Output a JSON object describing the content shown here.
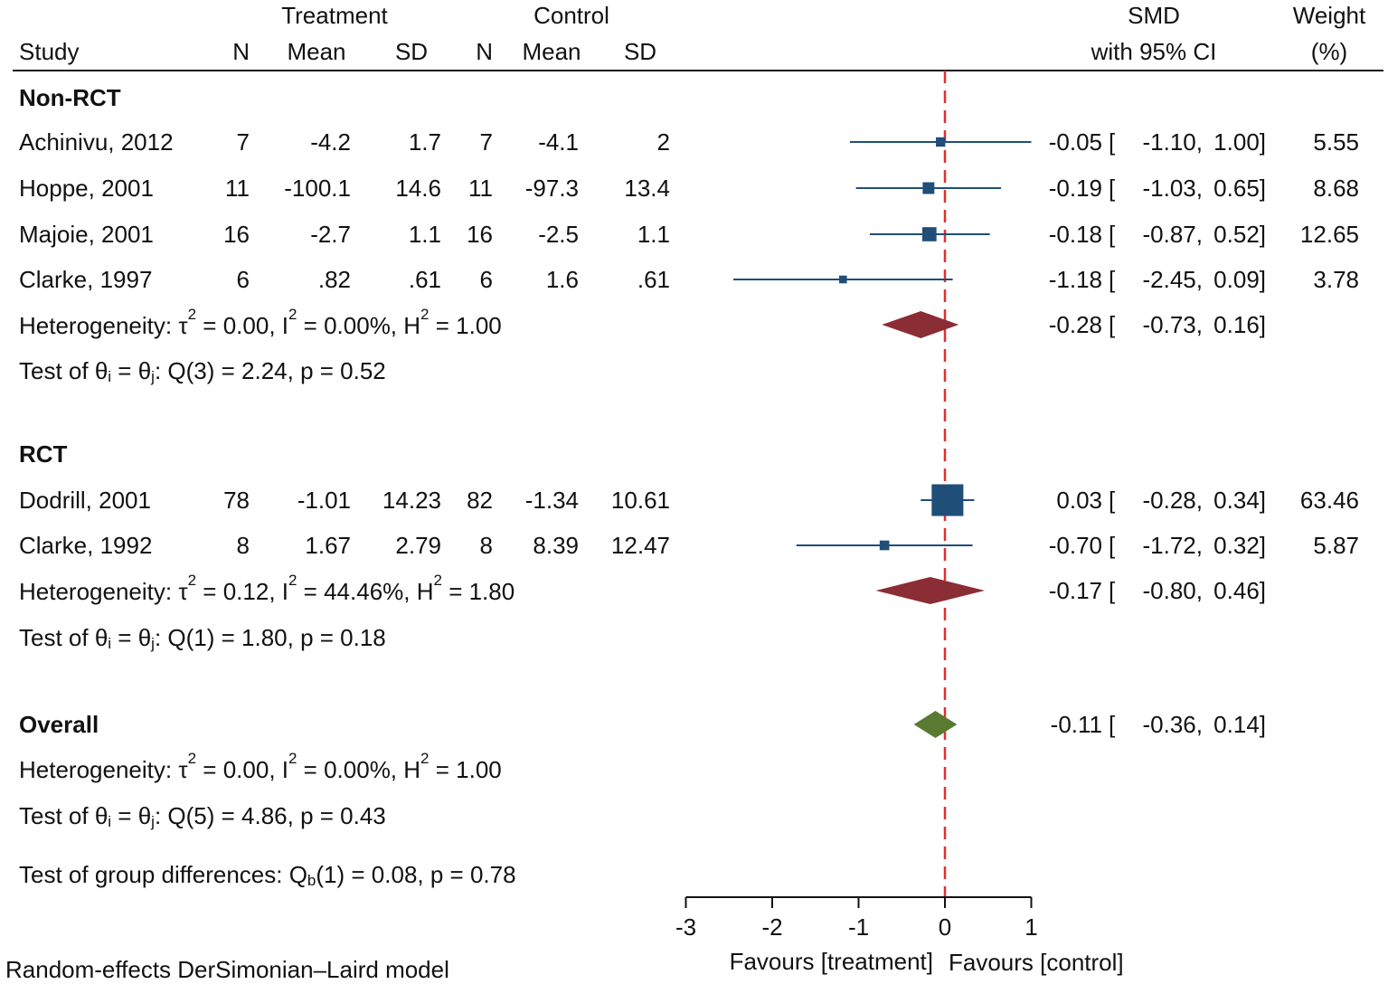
{
  "chart_data": {
    "type": "forest",
    "header": {
      "treatment_label": "Treatment",
      "control_label": "Control",
      "smd_label": "SMD",
      "ci_label": "with 95% CI",
      "weight_label": "Weight",
      "weight_unit": "(%)",
      "study": "Study",
      "n": "N",
      "mean": "Mean",
      "sd": "SD"
    },
    "groups": [
      {
        "name": "Non-RCT",
        "studies": [
          {
            "study": "Achinivu, 2012",
            "t_n": "7",
            "t_mean": "-4.2",
            "t_sd": "1.7",
            "c_n": "7",
            "c_mean": "-4.1",
            "c_sd": "2",
            "smd": -0.05,
            "lo": -1.1,
            "hi": 1.0,
            "smd_text": "-0.05",
            "lo_text": "-1.10,",
            "hi_text": "1.00]",
            "weight": 5.55,
            "weight_text": "5.55"
          },
          {
            "study": "Hoppe, 2001",
            "t_n": "11",
            "t_mean": "-100.1",
            "t_sd": "14.6",
            "c_n": "11",
            "c_mean": "-97.3",
            "c_sd": "13.4",
            "smd": -0.19,
            "lo": -1.03,
            "hi": 0.65,
            "smd_text": "-0.19",
            "lo_text": "-1.03,",
            "hi_text": "0.65]",
            "weight": 8.68,
            "weight_text": "8.68"
          },
          {
            "study": "Majoie, 2001",
            "t_n": "16",
            "t_mean": "-2.7",
            "t_sd": "1.1",
            "c_n": "16",
            "c_mean": "-2.5",
            "c_sd": "1.1",
            "smd": -0.18,
            "lo": -0.87,
            "hi": 0.52,
            "smd_text": "-0.18",
            "lo_text": "-0.87,",
            "hi_text": "0.52]",
            "weight": 12.65,
            "weight_text": "12.65"
          },
          {
            "study": "Clarke, 1997",
            "t_n": "6",
            "t_mean": ".82",
            "t_sd": ".61",
            "c_n": "6",
            "c_mean": "1.6",
            "c_sd": ".61",
            "smd": -1.18,
            "lo": -2.45,
            "hi": 0.09,
            "smd_text": "-1.18",
            "lo_text": "-2.45,",
            "hi_text": "0.09]",
            "weight": 3.78,
            "weight_text": "3.78"
          }
        ],
        "pooled": {
          "smd": -0.28,
          "lo": -0.73,
          "hi": 0.16,
          "smd_text": "-0.28",
          "lo_text": "-0.73,",
          "hi_text": "0.16]"
        },
        "heterogeneity": {
          "prefix": "Heterogeneity: τ",
          "tau": " = 0.00, I",
          "i2": " = 0.00%, H",
          "h2": " = 1.00"
        },
        "test": {
          "prefix": "Test of θ",
          "mid": " = θ",
          "suffix": ": Q(3) = 2.24, p = 0.52"
        }
      },
      {
        "name": "RCT",
        "studies": [
          {
            "study": "Dodrill, 2001",
            "t_n": "78",
            "t_mean": "-1.01",
            "t_sd": "14.23",
            "c_n": "82",
            "c_mean": "-1.34",
            "c_sd": "10.61",
            "smd": 0.03,
            "lo": -0.28,
            "hi": 0.34,
            "smd_text": "0.03",
            "lo_text": "-0.28,",
            "hi_text": "0.34]",
            "weight": 63.46,
            "weight_text": "63.46"
          },
          {
            "study": "Clarke, 1992",
            "t_n": "8",
            "t_mean": "1.67",
            "t_sd": "2.79",
            "c_n": "8",
            "c_mean": "8.39",
            "c_sd": "12.47",
            "smd": -0.7,
            "lo": -1.72,
            "hi": 0.32,
            "smd_text": "-0.70",
            "lo_text": "-1.72,",
            "hi_text": "0.32]",
            "weight": 5.87,
            "weight_text": "5.87"
          }
        ],
        "pooled": {
          "smd": -0.17,
          "lo": -0.8,
          "hi": 0.46,
          "smd_text": "-0.17",
          "lo_text": "-0.80,",
          "hi_text": "0.46]"
        },
        "heterogeneity": {
          "prefix": "Heterogeneity: τ",
          "tau": " = 0.12, I",
          "i2": " = 44.46%, H",
          "h2": " = 1.80"
        },
        "test": {
          "prefix": "Test of θ",
          "mid": " = θ",
          "suffix": ": Q(1) = 1.80, p = 0.18"
        }
      }
    ],
    "overall": {
      "label": "Overall",
      "smd": -0.11,
      "lo": -0.36,
      "hi": 0.14,
      "smd_text": "-0.11",
      "lo_text": "-0.36,",
      "hi_text": "0.14]",
      "heterogeneity": {
        "prefix": "Heterogeneity: τ",
        "tau": " = 0.00, I",
        "i2": " = 0.00%, H",
        "h2": " = 1.00"
      },
      "test": {
        "prefix": "Test of θ",
        "mid": " = θ",
        "suffix": ": Q(5) = 4.86, p = 0.43"
      }
    },
    "group_test": {
      "prefix": "Test of group differences: Q",
      "sub": "b",
      "suffix": "(1) = 0.08, p = 0.78"
    },
    "model_note": "Random-effects DerSimonian–Laird model",
    "xaxis": {
      "ticks": [
        -3,
        -2,
        -1,
        0,
        1
      ],
      "tick_labels": [
        "-3",
        "-2",
        "-1",
        "0",
        "1"
      ],
      "xlim": [
        -3,
        1
      ]
    },
    "favours_left": "Favours [treatment]",
    "favours_right": "Favours [control]",
    "sup2": "2",
    "sub_i": "i",
    "sub_j": "j",
    "ci_open": "[",
    "colors": {
      "study": "#1f4e79",
      "subgroup": "#8b2d35",
      "overall": "#5a7a32",
      "null_line": "#e03030",
      "axis": "#111111"
    }
  }
}
